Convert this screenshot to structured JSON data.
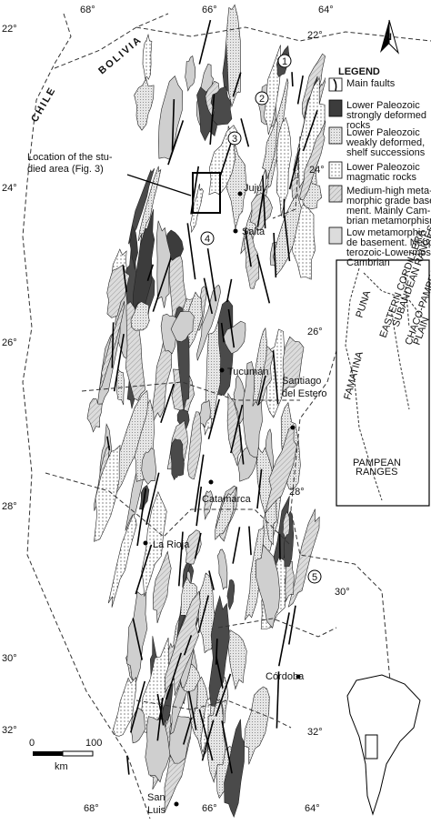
{
  "graticule": {
    "lat_left": [
      "22°",
      "24°",
      "26°",
      "28°",
      "30°",
      "32°"
    ],
    "lat_right": [
      "22°",
      "24°",
      "26°",
      "28°",
      "30°",
      "32°"
    ],
    "lon_top": [
      "68°",
      "66°",
      "64°"
    ],
    "lon_bottom": [
      "68°",
      "66°",
      "64°"
    ]
  },
  "countries": [
    "CHILE",
    "BOLIVIA"
  ],
  "cities": [
    [
      "Jujuy"
    ],
    [
      "Salta"
    ],
    [
      "Tucumán"
    ],
    [
      "Santiago",
      "del Estero"
    ],
    [
      "Catamarca"
    ],
    [
      "La Rioja"
    ],
    [
      "Córdoba"
    ],
    [
      "San",
      "Luis"
    ]
  ],
  "callout": [
    "Location of the stu-",
    "died area (Fig. 3)"
  ],
  "sites": [
    "1",
    "2",
    "3",
    "4",
    "5"
  ],
  "north": "N",
  "legend": {
    "title": "LEGEND",
    "items": [
      [
        "Main faults"
      ],
      [
        "Lower Paleozoic",
        "strongly deformed",
        "rocks"
      ],
      [
        "Lower Paleozoic",
        "weakly deformed,",
        "shelf successions"
      ],
      [
        "Lower Paleozoic",
        "magmatic rocks"
      ],
      [
        "Medium-high meta-",
        "morphic grade base-",
        "ment. Mainly Cam-",
        "brian metamorphism"
      ],
      [
        "Low metamorphic gra-",
        "de basement. Neopro-",
        "terozoic-Lowermost",
        "Cambrian"
      ]
    ]
  },
  "inset": {
    "labels": [
      [
        "PUNA"
      ],
      [
        "EASTERN CORDILLERA"
      ],
      [
        "SUBANDEAN RANGES"
      ],
      [
        "CHACO-PAMPEAN",
        "PLAIN"
      ],
      [
        "FAMATINA"
      ],
      [
        "PAMPEAN",
        "RANGES"
      ]
    ]
  },
  "scale": {
    "ticks": [
      "0",
      "100"
    ],
    "unit": "km"
  }
}
